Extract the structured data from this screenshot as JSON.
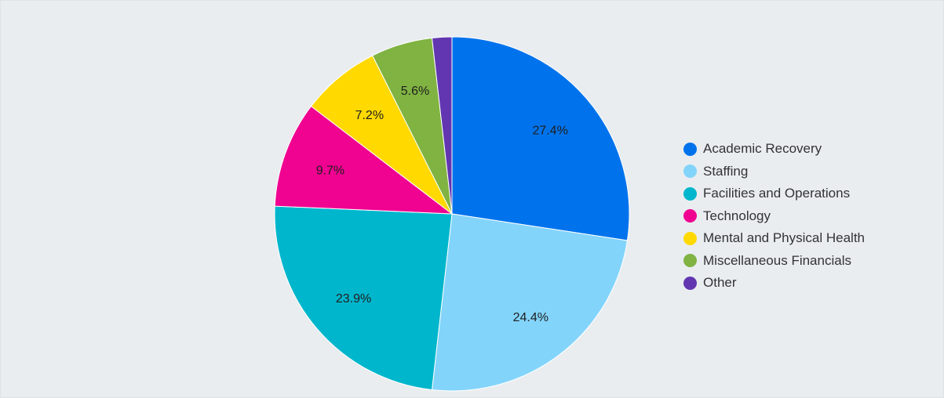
{
  "chart_data": {
    "type": "pie",
    "slices": [
      {
        "label": "Academic Recovery",
        "value": 27.4,
        "display": "27.4%",
        "color": "#0073ec"
      },
      {
        "label": "Staffing",
        "value": 24.4,
        "display": "24.4%",
        "color": "#83d4fb"
      },
      {
        "label": "Facilities and Operations",
        "value": 23.9,
        "display": "23.9%",
        "color": "#00b6cc"
      },
      {
        "label": "Technology",
        "value": 9.7,
        "display": "9.7%",
        "color": "#ef0390"
      },
      {
        "label": "Mental and Physical Health",
        "value": 7.2,
        "display": "7.2%",
        "color": "#ffd900"
      },
      {
        "label": "Miscellaneous Financials",
        "value": 5.6,
        "display": "5.6%",
        "color": "#80b342"
      },
      {
        "label": "Other",
        "value": 1.8,
        "display": "",
        "color": "#6236b1"
      }
    ],
    "start_angle_deg": 0,
    "direction": "clockwise",
    "legend_position": "right"
  }
}
